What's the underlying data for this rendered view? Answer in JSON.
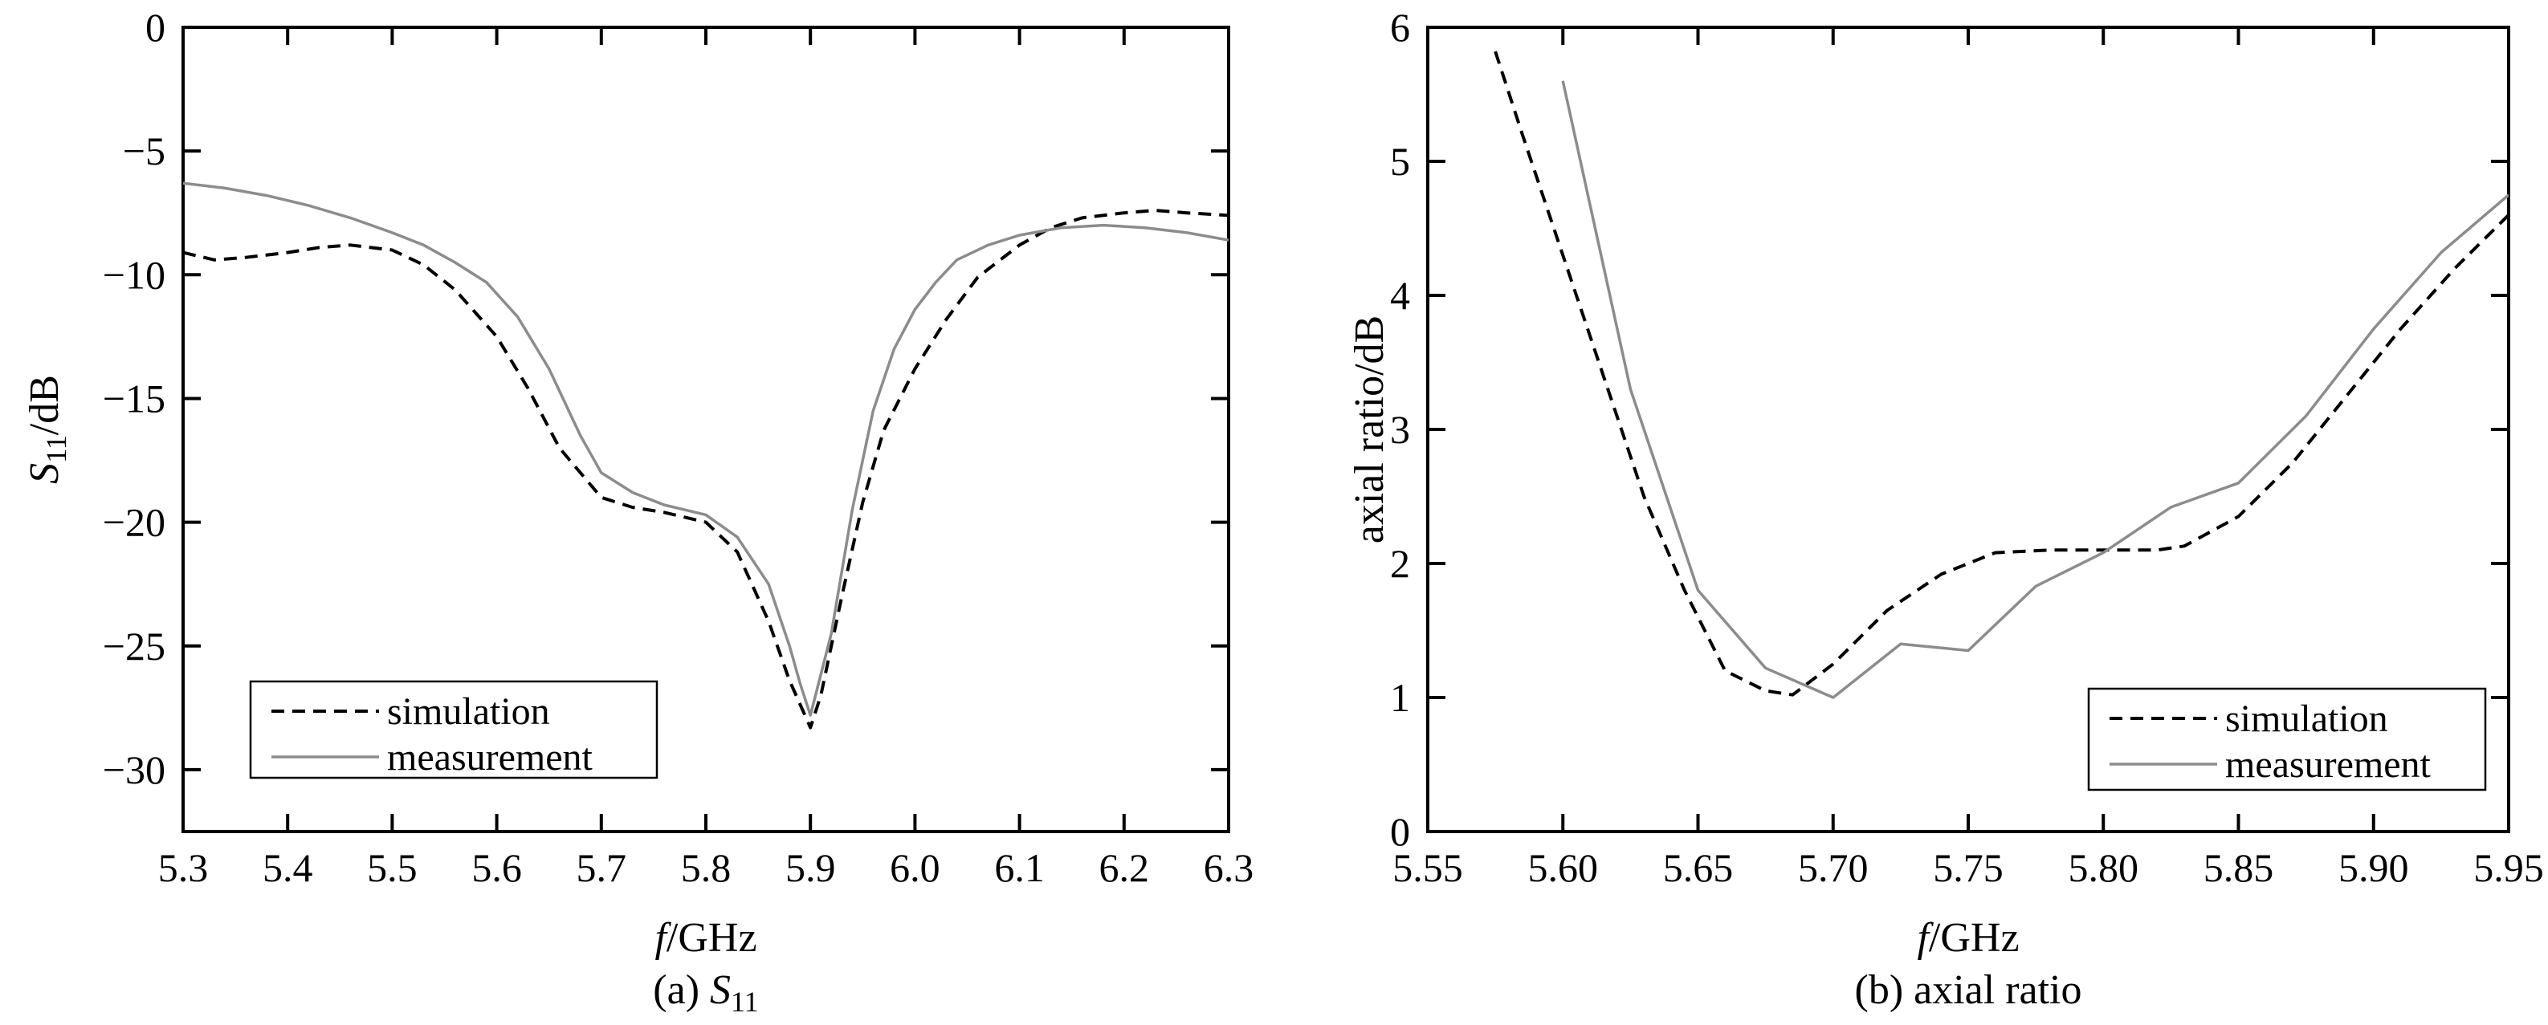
{
  "chart_data": [
    {
      "type": "line",
      "caption": "(a) S11",
      "caption_prefix": "(a) ",
      "caption_symbol": "S",
      "caption_sub": "11",
      "xlabel_italic": "f",
      "xlabel_rest": "/GHz",
      "ylabel_symbol": "S",
      "ylabel_sub": "11",
      "ylabel_rest": "/dB",
      "xlim": [
        5.3,
        6.3
      ],
      "ylim": [
        -32.5,
        0
      ],
      "xticks": [
        "5.3",
        "5.4",
        "5.5",
        "5.6",
        "5.7",
        "5.8",
        "5.9",
        "6.0",
        "6.1",
        "6.2",
        "6.3"
      ],
      "yticks": [
        "0",
        "−5",
        "−10",
        "−15",
        "−20",
        "−25",
        "−30"
      ],
      "legend_position": "bottom-left",
      "series": [
        {
          "name": "simulation",
          "style": "dashed",
          "color": "#000000",
          "x": [
            5.3,
            5.33,
            5.36,
            5.4,
            5.43,
            5.46,
            5.5,
            5.53,
            5.56,
            5.6,
            5.63,
            5.66,
            5.7,
            5.73,
            5.76,
            5.8,
            5.83,
            5.86,
            5.88,
            5.9,
            5.91,
            5.93,
            5.95,
            5.97,
            6.0,
            6.03,
            6.06,
            6.1,
            6.13,
            6.16,
            6.2,
            6.23,
            6.26,
            6.3
          ],
          "y": [
            -9.1,
            -9.4,
            -9.3,
            -9.1,
            -8.9,
            -8.8,
            -9.0,
            -9.6,
            -10.6,
            -12.5,
            -14.6,
            -17.0,
            -19.0,
            -19.4,
            -19.6,
            -20.0,
            -21.2,
            -24.0,
            -26.4,
            -28.3,
            -27.0,
            -23.0,
            -19.2,
            -16.3,
            -13.8,
            -11.8,
            -10.1,
            -8.8,
            -8.1,
            -7.7,
            -7.5,
            -7.4,
            -7.5,
            -7.6
          ]
        },
        {
          "name": "measurement",
          "style": "solid",
          "color": "#8c8c8c",
          "x": [
            5.3,
            5.34,
            5.38,
            5.42,
            5.46,
            5.5,
            5.53,
            5.56,
            5.59,
            5.62,
            5.65,
            5.68,
            5.7,
            5.73,
            5.76,
            5.8,
            5.83,
            5.86,
            5.88,
            5.89,
            5.9,
            5.92,
            5.94,
            5.96,
            5.98,
            6.0,
            6.02,
            6.04,
            6.07,
            6.1,
            6.14,
            6.18,
            6.22,
            6.26,
            6.3
          ],
          "y": [
            -6.3,
            -6.5,
            -6.8,
            -7.2,
            -7.7,
            -8.3,
            -8.8,
            -9.5,
            -10.3,
            -11.7,
            -13.8,
            -16.5,
            -18.0,
            -18.8,
            -19.3,
            -19.7,
            -20.6,
            -22.5,
            -25.0,
            -26.5,
            -27.8,
            -24.5,
            -19.5,
            -15.5,
            -13.0,
            -11.4,
            -10.3,
            -9.4,
            -8.8,
            -8.4,
            -8.1,
            -8.0,
            -8.1,
            -8.3,
            -8.6
          ]
        }
      ]
    },
    {
      "type": "line",
      "caption": "(b) axial ratio",
      "xlabel_italic": "f",
      "xlabel_rest": "/GHz",
      "ylabel": "axial ratio/dB",
      "xlim": [
        5.55,
        5.95
      ],
      "ylim": [
        0,
        6
      ],
      "xticks": [
        "5.55",
        "5.60",
        "5.65",
        "5.70",
        "5.75",
        "5.80",
        "5.85",
        "5.90",
        "5.95"
      ],
      "yticks": [
        "0",
        "1",
        "2",
        "3",
        "4",
        "5",
        "6"
      ],
      "legend_position": "bottom-right",
      "series": [
        {
          "name": "simulation",
          "style": "dashed",
          "color": "#000000",
          "x": [
            5.575,
            5.585,
            5.6,
            5.615,
            5.63,
            5.645,
            5.66,
            5.675,
            5.685,
            5.7,
            5.72,
            5.74,
            5.76,
            5.78,
            5.8,
            5.82,
            5.83,
            5.85,
            5.87,
            5.89,
            5.91,
            5.93,
            5.95
          ],
          "y": [
            5.82,
            5.2,
            4.3,
            3.4,
            2.5,
            1.8,
            1.2,
            1.05,
            1.02,
            1.25,
            1.65,
            1.92,
            2.08,
            2.1,
            2.1,
            2.1,
            2.13,
            2.35,
            2.75,
            3.25,
            3.75,
            4.2,
            4.6
          ]
        },
        {
          "name": "measurement",
          "style": "solid",
          "color": "#8c8c8c",
          "x": [
            5.6,
            5.625,
            5.65,
            5.675,
            5.7,
            5.725,
            5.75,
            5.775,
            5.8,
            5.825,
            5.85,
            5.875,
            5.9,
            5.925,
            5.95
          ],
          "y": [
            5.6,
            3.3,
            1.8,
            1.22,
            1.0,
            1.4,
            1.35,
            1.83,
            2.08,
            2.42,
            2.6,
            3.1,
            3.75,
            4.32,
            4.75
          ]
        }
      ]
    }
  ]
}
